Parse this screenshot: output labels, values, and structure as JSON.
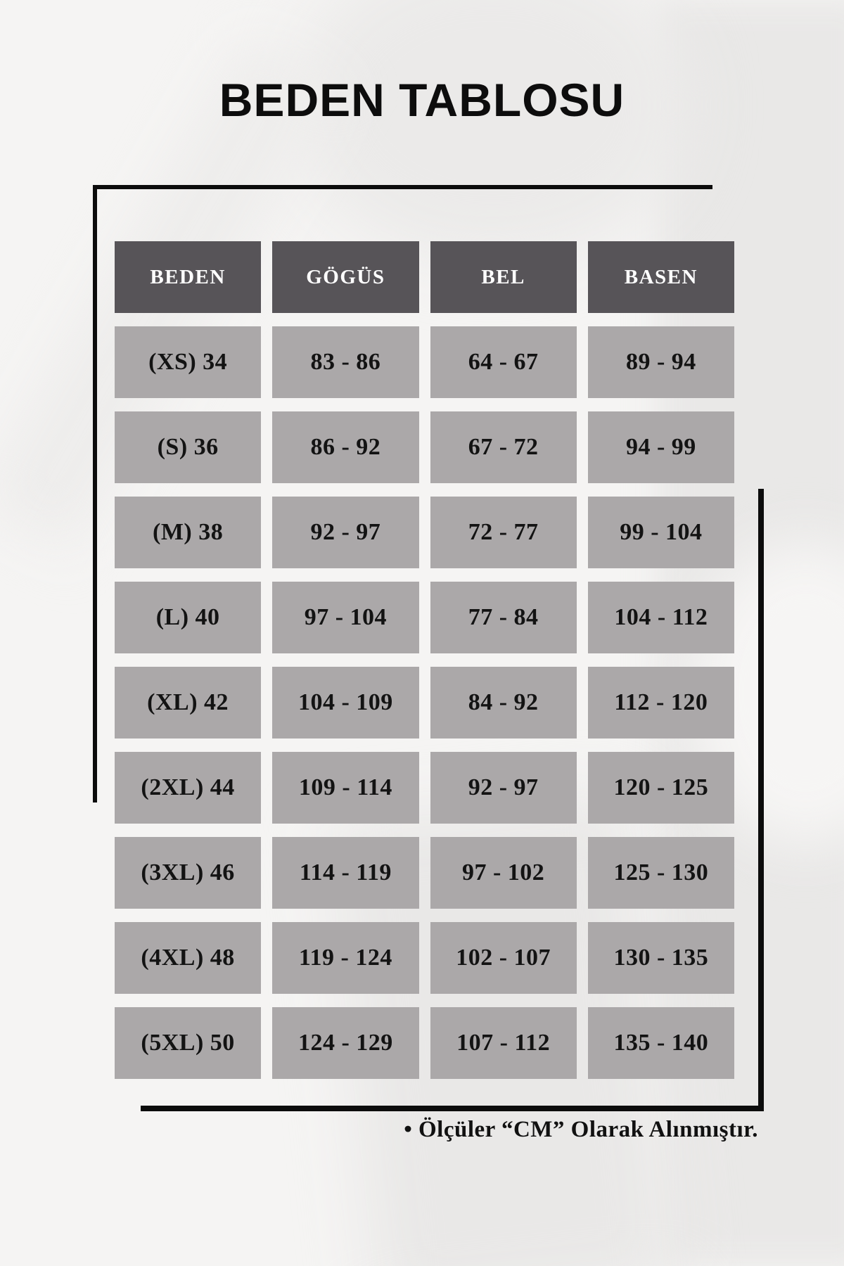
{
  "title": "BEDEN TABLOSU",
  "table": {
    "headers": [
      "BEDEN",
      "GÖGÜS",
      "BEL",
      "BASEN"
    ],
    "rows": [
      [
        "(XS) 34",
        "83 - 86",
        "64 - 67",
        "89 - 94"
      ],
      [
        "(S) 36",
        "86 - 92",
        "67 - 72",
        "94 - 99"
      ],
      [
        "(M) 38",
        "92 - 97",
        "72 - 77",
        "99 - 104"
      ],
      [
        "(L) 40",
        "97 - 104",
        "77 - 84",
        "104 - 112"
      ],
      [
        "(XL) 42",
        "104 - 109",
        "84 - 92",
        "112 - 120"
      ],
      [
        "(2XL) 44",
        "109 - 114",
        "92 - 97",
        "120 - 125"
      ],
      [
        "(3XL) 46",
        "114 - 119",
        "97 - 102",
        "125 - 130"
      ],
      [
        "(4XL) 48",
        "119 - 124",
        "102 - 107",
        "130 - 135"
      ],
      [
        "(5XL) 50",
        "124 - 129",
        "107 - 112",
        "135 - 140"
      ]
    ]
  },
  "footer": {
    "note": "• Ölçüler “CM” Olarak Alınmıştır."
  },
  "colors": {
    "header_bg": "#575458",
    "header_text": "#ffffff",
    "cell_bg": "#aba8a9",
    "cell_text": "#131313",
    "frame": "#0c0c0c",
    "background": "#f5f4f3"
  }
}
